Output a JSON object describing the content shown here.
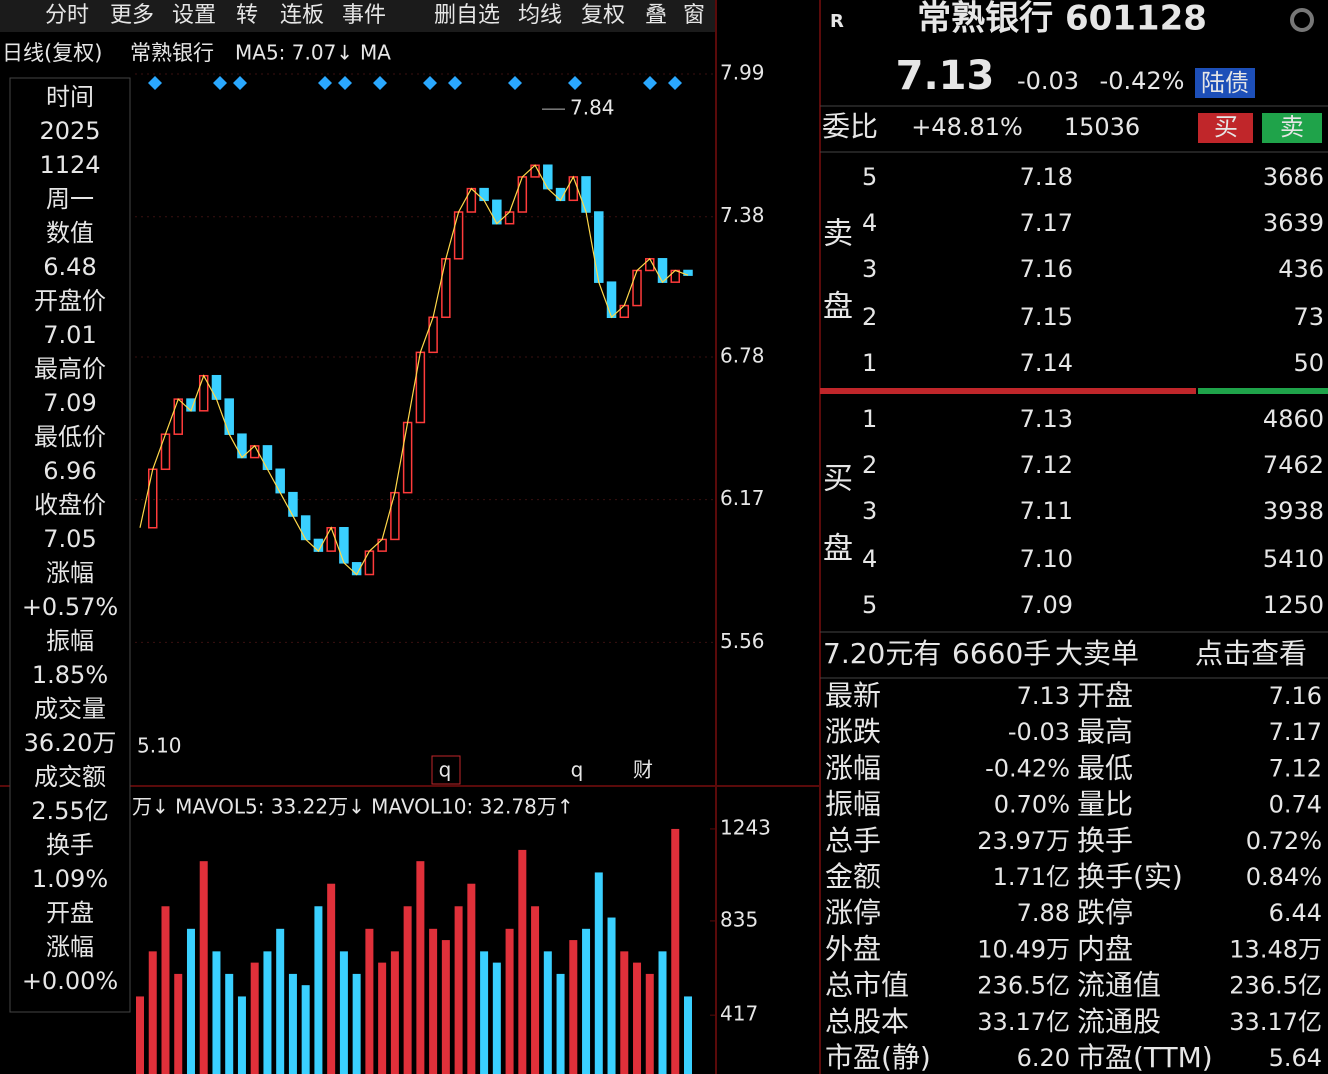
{
  "toolbar": [
    "分时",
    "更多",
    "设置",
    "转",
    "连板",
    "事件",
    "删自选",
    "均线",
    "复权",
    "叠",
    "窗"
  ],
  "chart": {
    "type": "candlestick",
    "period": "日线(复权)",
    "name": "常熟银行",
    "ma5": "MA5: 7.07↓",
    "ma_next": "MA",
    "ylim": [
      4.95,
      8.05
    ],
    "yticks": [
      7.99,
      7.38,
      6.78,
      6.17,
      5.56
    ],
    "peak": 7.84,
    "low_label": "5.10",
    "markers": [
      "q",
      "q",
      "财"
    ],
    "closes": [
      6.05,
      6.3,
      6.45,
      6.6,
      6.55,
      6.7,
      6.6,
      6.45,
      6.35,
      6.4,
      6.3,
      6.2,
      6.1,
      6.0,
      5.95,
      6.05,
      5.9,
      5.85,
      5.95,
      6.0,
      6.2,
      6.5,
      6.8,
      6.95,
      7.2,
      7.4,
      7.5,
      7.45,
      7.35,
      7.4,
      7.55,
      7.6,
      7.5,
      7.45,
      7.55,
      7.4,
      7.1,
      6.95,
      7.0,
      7.15,
      7.2,
      7.1,
      7.15,
      7.13
    ],
    "volume_header": "万↓ MAVOL5: 33.22万↓ MAVOL10: 32.78万↑",
    "vol_ylim": [
      156,
      1327
    ],
    "vol_yticks": [
      1243,
      835,
      417
    ],
    "volumes": [
      500,
      700,
      900,
      600,
      800,
      1100,
      700,
      600,
      500,
      650,
      700,
      800,
      600,
      550,
      900,
      1000,
      700,
      600,
      800,
      650,
      700,
      900,
      1100,
      800,
      750,
      900,
      1000,
      700,
      650,
      800,
      1150,
      900,
      700,
      600,
      750,
      800,
      1050,
      850,
      700,
      650,
      600,
      700,
      1243,
      500
    ]
  },
  "info_panel": [
    {
      "text": "时间",
      "color": "#e6e6e6"
    },
    {
      "text": "2025",
      "color": "#e6e6e6"
    },
    {
      "text": "1124",
      "color": "#e6e6e6"
    },
    {
      "text": "周一",
      "color": "#e6e6e6"
    },
    {
      "text": "数值",
      "color": "#e6e6e6"
    },
    {
      "text": "6.48",
      "color": "#ff3b3b"
    },
    {
      "text": "开盘价",
      "color": "#e6e6e6"
    },
    {
      "text": "7.01",
      "color": "#ffffff"
    },
    {
      "text": "最高价",
      "color": "#e6e6e6"
    },
    {
      "text": "7.09",
      "color": "#ff3b3b"
    },
    {
      "text": "最低价",
      "color": "#e6e6e6"
    },
    {
      "text": "6.96",
      "color": "#22d35e"
    },
    {
      "text": "收盘价",
      "color": "#e6e6e6"
    },
    {
      "text": "7.05",
      "color": "#ff3b3b"
    },
    {
      "text": "涨幅",
      "color": "#e6e6e6"
    },
    {
      "text": "+0.57%",
      "color": "#ff3b3b"
    },
    {
      "text": "振幅",
      "color": "#e6e6e6"
    },
    {
      "text": "1.85%",
      "color": "#3ad0ff"
    },
    {
      "text": "成交量",
      "color": "#e6e6e6"
    },
    {
      "text": "36.20万",
      "color": "#3ad0ff"
    },
    {
      "text": "成交额",
      "color": "#e6e6e6"
    },
    {
      "text": "2.55亿",
      "color": "#3ad0ff"
    },
    {
      "text": "换手",
      "color": "#e6e6e6"
    },
    {
      "text": "1.09%",
      "color": "#3ad0ff"
    },
    {
      "text": "开盘",
      "color": "#e6e6e6"
    },
    {
      "text": "涨幅",
      "color": "#e6e6e6"
    },
    {
      "text": "+0.00%",
      "color": "#ffffff"
    }
  ],
  "quote": {
    "flag": "R",
    "title": "常熟银行 601128",
    "price": "7.13",
    "change": "-0.03",
    "change_pct": "-0.42%",
    "badge": "陆债"
  },
  "ratio": {
    "label": "委比",
    "pct": "+48.81%",
    "diff": "15036",
    "buy": "买",
    "sell": "卖"
  },
  "asks": {
    "label": [
      "卖",
      "盘"
    ],
    "rows": [
      [
        "5",
        "7.18",
        "3686"
      ],
      [
        "4",
        "7.17",
        "3639"
      ],
      [
        "3",
        "7.16",
        "436"
      ],
      [
        "2",
        "7.15",
        "73"
      ],
      [
        "1",
        "7.14",
        "50"
      ]
    ],
    "price_colors": [
      "#ff3b3b",
      "#ff3b3b",
      "#ffffff",
      "#22d35e",
      "#22d35e"
    ]
  },
  "bids": {
    "label": [
      "买",
      "盘"
    ],
    "rows": [
      [
        "1",
        "7.13",
        "4860"
      ],
      [
        "2",
        "7.12",
        "7462"
      ],
      [
        "3",
        "7.11",
        "3938"
      ],
      [
        "4",
        "7.10",
        "5410"
      ],
      [
        "5",
        "7.09",
        "1250"
      ]
    ],
    "price_colors": [
      "#22d35e",
      "#22d35e",
      "#22d35e",
      "#22d35e",
      "#22d35e"
    ]
  },
  "big_order": [
    "7.20元有",
    "6660手",
    "大卖单",
    "点击查看"
  ],
  "stats": {
    "rows": [
      [
        "最新",
        "7.13",
        "开盘",
        "7.16"
      ],
      [
        "涨跌",
        "-0.03",
        "最高",
        "7.17"
      ],
      [
        "涨幅",
        "-0.42%",
        "最低",
        "7.12"
      ],
      [
        "振幅",
        "0.70%",
        "量比",
        "0.74"
      ],
      [
        "总手",
        "23.97万",
        "换手",
        "0.72%"
      ],
      [
        "金额",
        "1.71亿",
        "换手(实)",
        "0.84%"
      ],
      [
        "涨停",
        "7.88",
        "跌停",
        "6.44"
      ],
      [
        "外盘",
        "10.49万",
        "内盘",
        "13.48万"
      ],
      [
        "总市值",
        "236.5亿",
        "流通值",
        "236.5亿"
      ],
      [
        "总股本",
        "33.17亿",
        "流通股",
        "33.17亿"
      ],
      [
        "市盈(静)",
        "6.20",
        "市盈(TTM)",
        "5.64"
      ]
    ],
    "value_colors": [
      [
        "#22d35e",
        "#ffffff"
      ],
      [
        "#22d35e",
        "#ff3b3b"
      ],
      [
        "#22d35e",
        "#22d35e"
      ],
      [
        "#3ad0ff",
        "#3ad0ff"
      ],
      [
        "#3ad0ff",
        "#3ad0ff"
      ],
      [
        "#3ad0ff",
        "#3ad0ff"
      ],
      [
        "#ff3b3b",
        "#22d35e"
      ],
      [
        "#ff3b3b",
        "#22d35e"
      ],
      [
        "#3ad0ff",
        "#3ad0ff"
      ],
      [
        "#3ad0ff",
        "#3ad0ff"
      ],
      [
        "#ffffff",
        "#ffffff"
      ]
    ]
  }
}
